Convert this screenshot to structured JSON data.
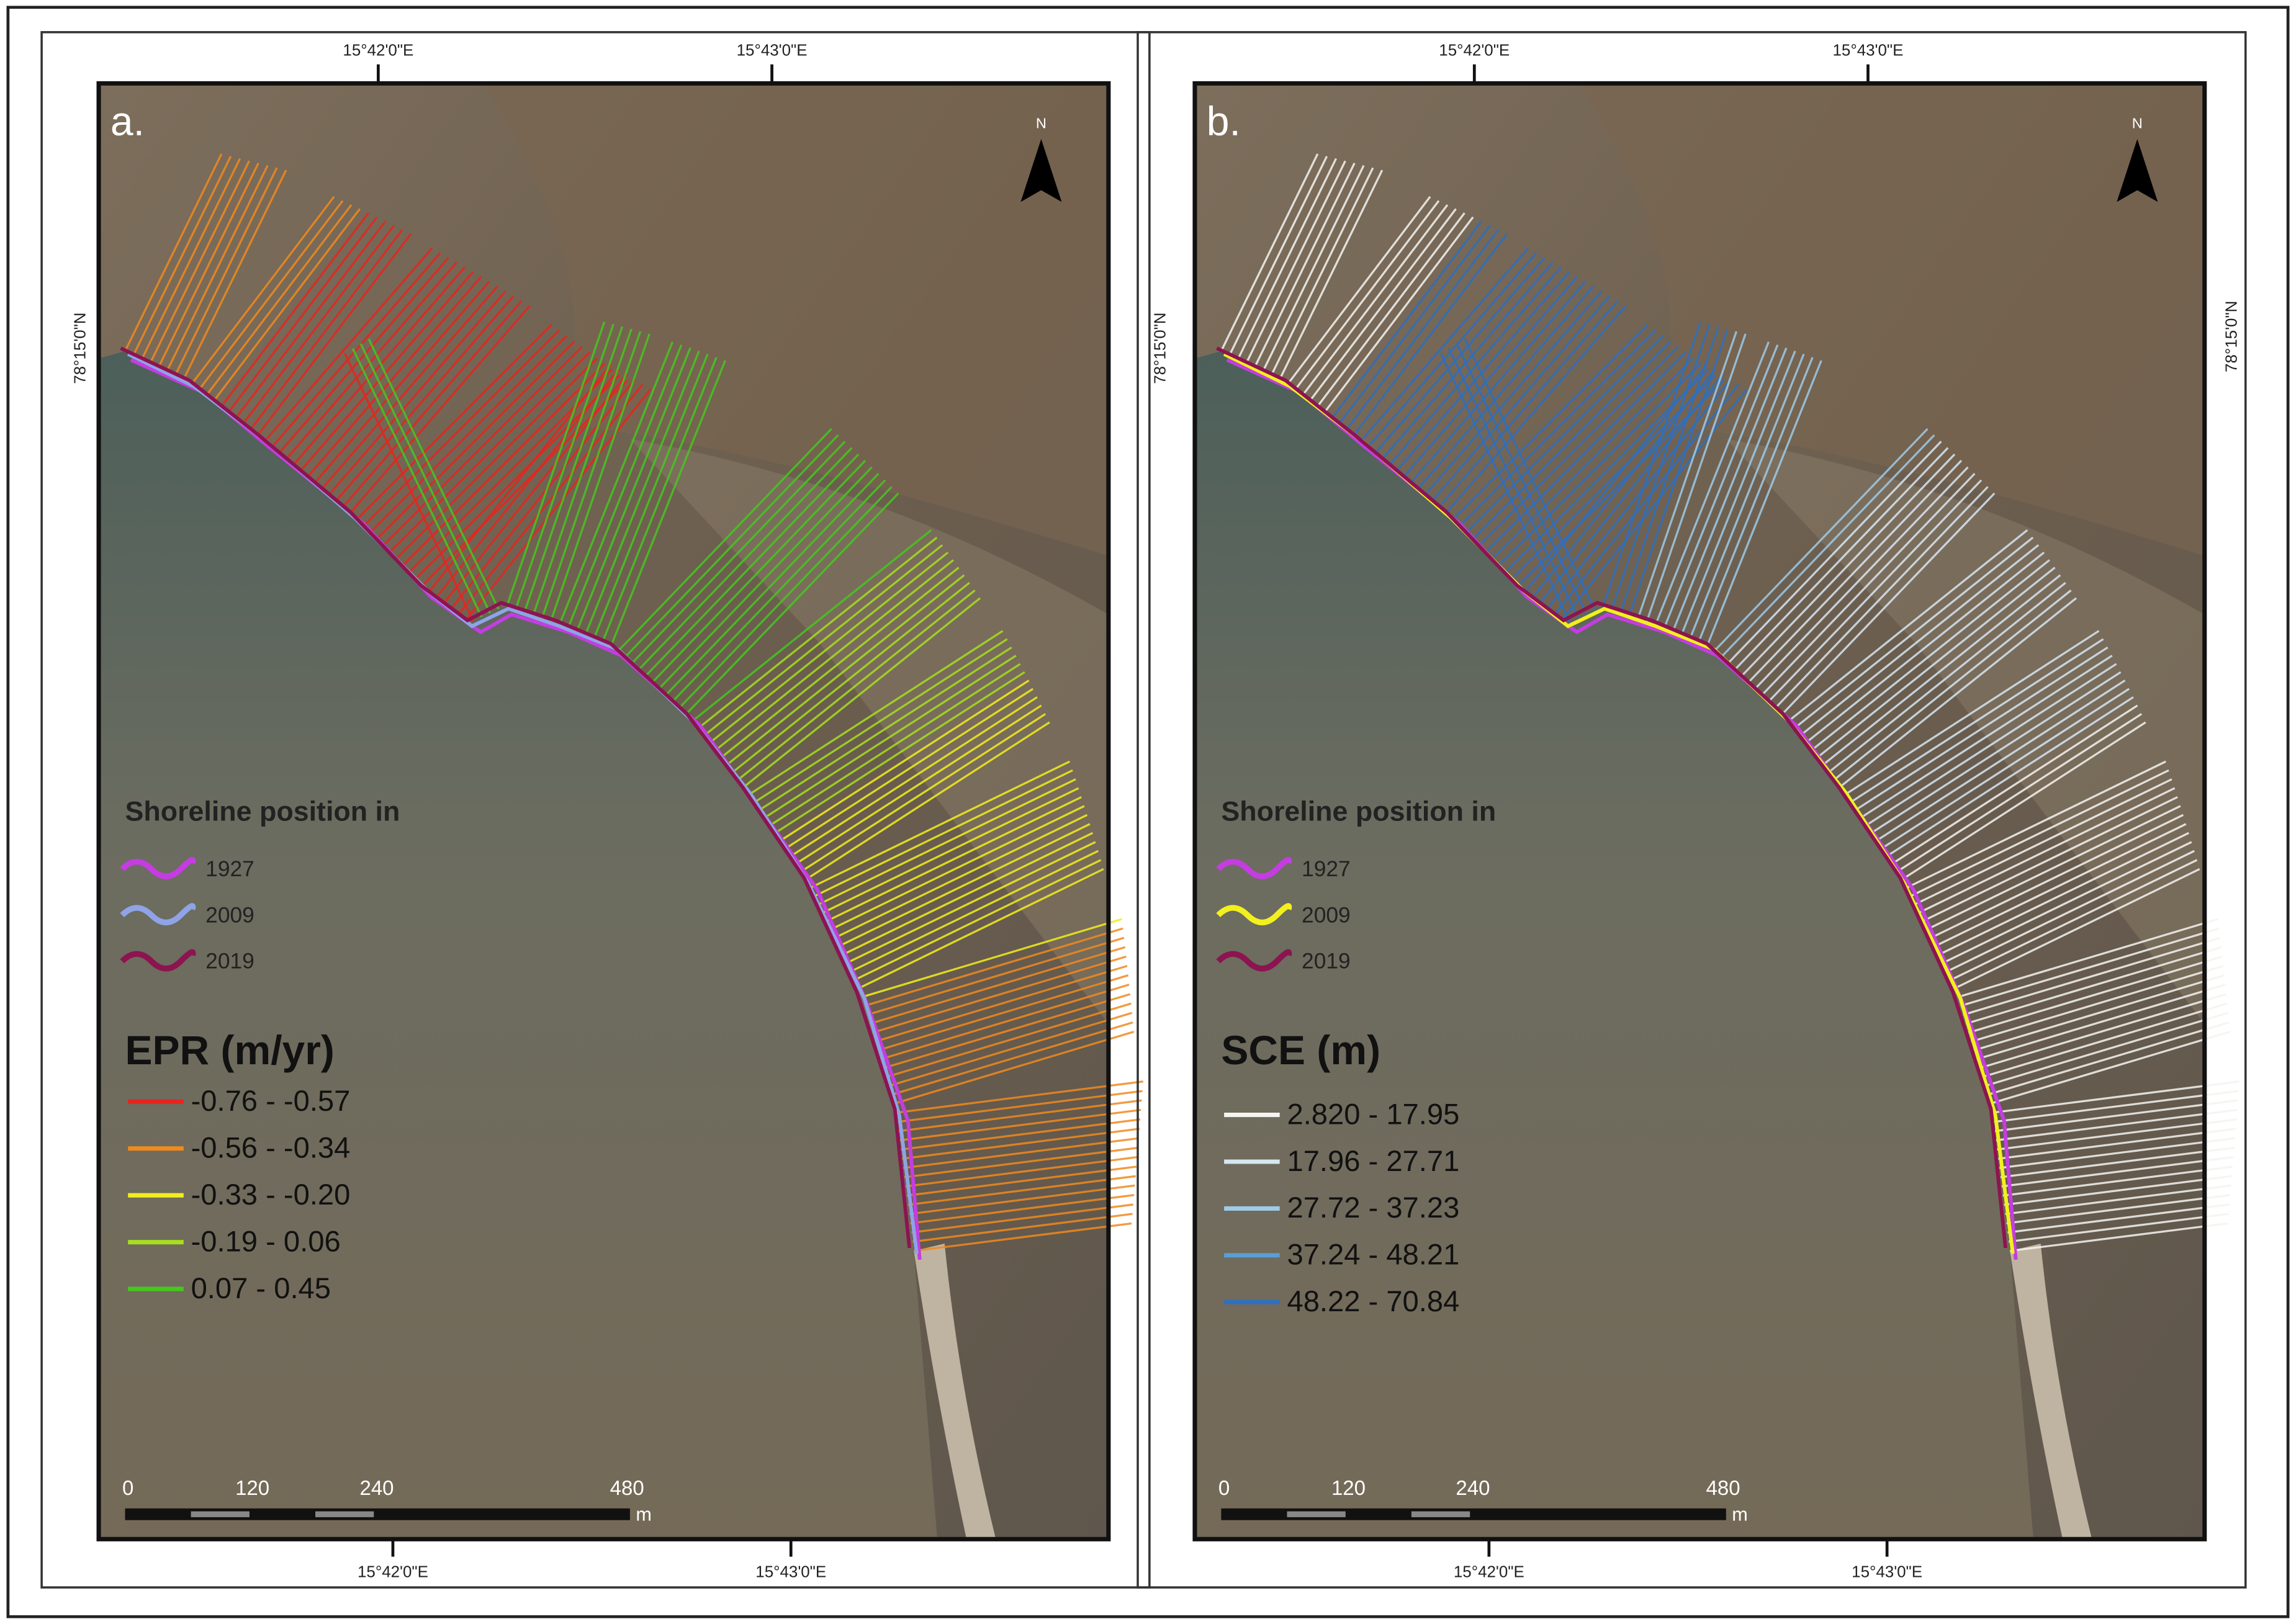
{
  "panels": [
    {
      "label": "a.",
      "top_lon": [
        "15°42'0\"E",
        "15°43'0\"E"
      ],
      "bottom_lon": [
        "15°42'0\"E",
        "15°43'0\"E"
      ],
      "lat": "78°15'0\"N",
      "north": "N",
      "shoreline_title": "Shoreline position in",
      "shorelines": [
        {
          "year": "1927",
          "color": "#c43de0"
        },
        {
          "year": "2009",
          "color": "#8fa3e6"
        },
        {
          "year": "2019",
          "color": "#8c1450"
        }
      ],
      "class_title": "EPR (m/yr)",
      "classes": [
        {
          "label": "-0.76 - -0.57",
          "color": "#e8241e"
        },
        {
          "label": "-0.56 - -0.34",
          "color": "#f08a1e"
        },
        {
          "label": "-0.33 - -0.20",
          "color": "#f2ee1e"
        },
        {
          "label": "-0.19 - 0.06",
          "color": "#a6e01e"
        },
        {
          "label": "0.07 - 0.45",
          "color": "#46c81e"
        }
      ],
      "scale": {
        "ticks": [
          "0",
          "120",
          "240",
          "480"
        ],
        "unit": "m"
      }
    },
    {
      "label": "b.",
      "top_lon": [
        "15°42'0\"E",
        "15°43'0\"E"
      ],
      "bottom_lon": [
        "15°42'0\"E",
        "15°43'0\"E"
      ],
      "lat": "78°15'0\"N",
      "north": "N",
      "shoreline_title": "Shoreline position in",
      "shorelines": [
        {
          "year": "1927",
          "color": "#c43de0"
        },
        {
          "year": "2009",
          "color": "#f2f01e"
        },
        {
          "year": "2019",
          "color": "#8c1450"
        }
      ],
      "class_title": "SCE (m)",
      "classes": [
        {
          "label": "2.820 - 17.95",
          "color": "#f4f4f0"
        },
        {
          "label": "17.96 - 27.71",
          "color": "#d6e6f2"
        },
        {
          "label": "27.72 - 37.23",
          "color": "#9ecbe8"
        },
        {
          "label": "37.24 - 48.21",
          "color": "#5a9ed6"
        },
        {
          "label": "48.22 - 70.84",
          "color": "#2e6fc0"
        }
      ],
      "scale": {
        "ticks": [
          "0",
          "120",
          "240",
          "480"
        ],
        "unit": "m"
      }
    }
  ]
}
